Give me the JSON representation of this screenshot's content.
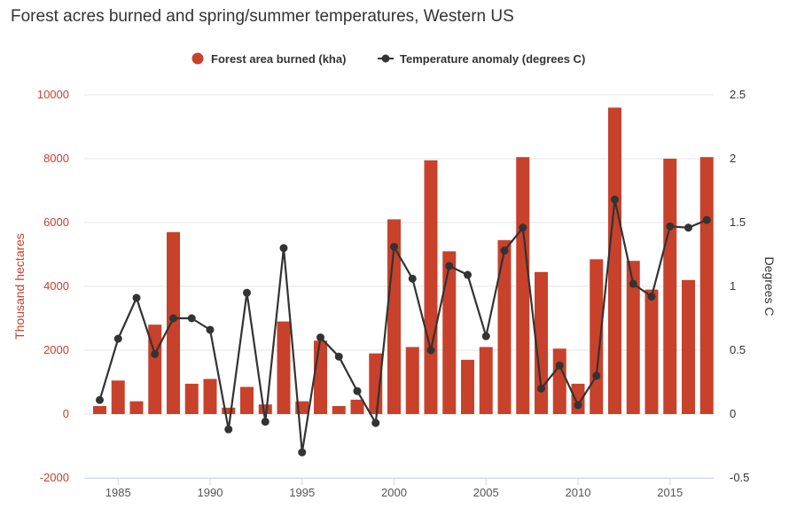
{
  "chart_data": {
    "type": "bar",
    "title": "Forest acres burned and spring/summer temperatures, Western US",
    "categories": [
      1984,
      1985,
      1986,
      1987,
      1988,
      1989,
      1990,
      1991,
      1992,
      1993,
      1994,
      1995,
      1996,
      1997,
      1998,
      1999,
      2000,
      2001,
      2002,
      2003,
      2004,
      2005,
      2006,
      2007,
      2008,
      2009,
      2010,
      2011,
      2012,
      2013,
      2014,
      2015,
      2016,
      2017
    ],
    "series": [
      {
        "name": "Forest area burned (kha)",
        "type": "bar",
        "axis": "left",
        "color": "#c8412b",
        "values": [
          250,
          1050,
          400,
          2800,
          5700,
          950,
          1100,
          200,
          850,
          300,
          2900,
          400,
          2300,
          250,
          450,
          1900,
          6100,
          2100,
          7950,
          5100,
          1700,
          2100,
          5450,
          8050,
          4450,
          2050,
          950,
          4850,
          9600,
          4800,
          3900,
          8000,
          4200,
          8050
        ]
      },
      {
        "name": "Temperature anomaly (degrees C)",
        "type": "line",
        "axis": "right",
        "color": "#333333",
        "values": [
          0.11,
          0.59,
          0.91,
          0.47,
          0.75,
          0.75,
          0.66,
          -0.12,
          0.95,
          -0.06,
          1.3,
          -0.3,
          0.6,
          0.45,
          0.18,
          -0.07,
          1.31,
          1.06,
          0.5,
          1.16,
          1.09,
          0.61,
          1.28,
          1.46,
          0.2,
          0.38,
          0.07,
          0.3,
          1.68,
          1.02,
          0.92,
          1.47,
          1.46,
          1.52
        ]
      }
    ],
    "xticks": [
      1985,
      1990,
      1995,
      2000,
      2005,
      2010,
      2015
    ],
    "ylabel": "Thousand hectares",
    "ylim": [
      -2000,
      10000
    ],
    "yticks": [
      -2000,
      0,
      2000,
      4000,
      6000,
      8000,
      10000
    ],
    "y2label": "Degrees C",
    "y2lim": [
      -0.5,
      2.5
    ],
    "y2ticks": [
      -0.5,
      0,
      0.5,
      1,
      1.5,
      2,
      2.5
    ],
    "legend": "top-center",
    "grid": true,
    "left_axis_color": "#c8412b"
  }
}
